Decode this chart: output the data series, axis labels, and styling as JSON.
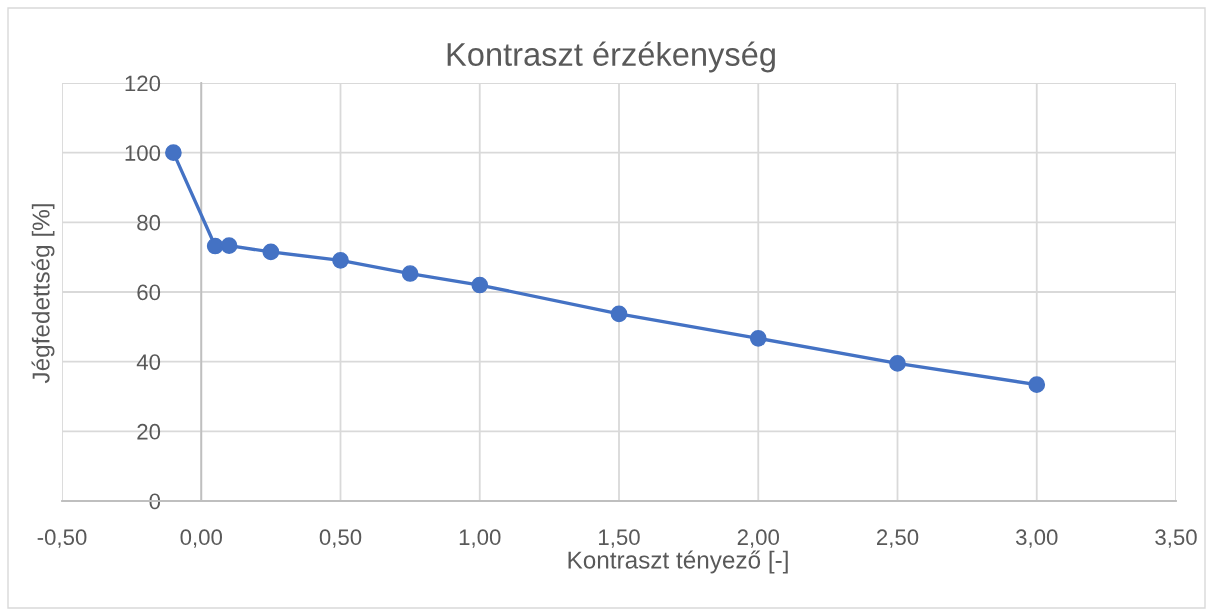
{
  "chart_data": {
    "type": "line",
    "title": "Kontraszt érzékenység",
    "xlabel": "Kontraszt tényező [-]",
    "ylabel": "Jégfedettség [%]",
    "x": [
      -0.1,
      0.05,
      0.1,
      0.25,
      0.5,
      0.75,
      1.0,
      1.5,
      2.0,
      2.5,
      3.0
    ],
    "series": [
      {
        "color": "#4472c4",
        "values": [
          100,
          73.2,
          73.3,
          71.5,
          69.1,
          65.3,
          62.0,
          53.7,
          46.7,
          39.5,
          33.4
        ]
      }
    ],
    "xlim": [
      -0.5,
      3.5
    ],
    "xticks": [
      {
        "value": -0.5,
        "label": "-0,50"
      },
      {
        "value": 0,
        "label": "0,00"
      },
      {
        "value": 0.5,
        "label": "0,50"
      },
      {
        "value": 1.0,
        "label": "1,00"
      },
      {
        "value": 1.5,
        "label": "1,50"
      },
      {
        "value": 2.0,
        "label": "2,00"
      },
      {
        "value": 2.5,
        "label": "2,50"
      },
      {
        "value": 3.0,
        "label": "3,00"
      },
      {
        "value": 3.5,
        "label": "3,50"
      }
    ],
    "ylim": [
      0,
      120
    ],
    "yticks": [
      0,
      20,
      40,
      60,
      80,
      100,
      120
    ],
    "grid": true,
    "marker": "circle",
    "line_style": "solid"
  }
}
